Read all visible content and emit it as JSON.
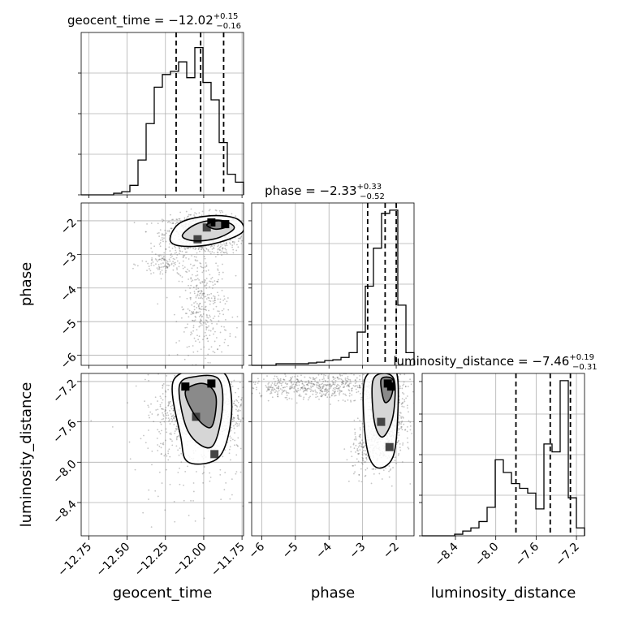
{
  "chart_data": {
    "type": "corner",
    "grid": true,
    "parameters": [
      {
        "name": "geocent_time",
        "xlabel": "geocent_time",
        "ylabel": "",
        "title": "geocent_time = −12.02",
        "title_sup": "+0.15",
        "title_sub": "−0.16",
        "range": [
          -12.8,
          -11.74
        ],
        "ticks": [
          -12.75,
          -12.5,
          -12.25,
          -12.0,
          -11.75
        ],
        "tick_labels": [
          "−12.75",
          "−12.50",
          "−12.25",
          "−12.00",
          "−11.75"
        ],
        "quantiles": [
          -12.18,
          -12.02,
          -11.87
        ],
        "hist_edges": [
          -12.8,
          -12.747,
          -12.694,
          -12.641,
          -12.588,
          -12.535,
          -12.482,
          -12.429,
          -12.376,
          -12.323,
          -12.27,
          -12.217,
          -12.164,
          -12.111,
          -12.058,
          -12.005,
          -11.952,
          -11.899,
          -11.846,
          -11.793,
          -11.74
        ],
        "hist_values": [
          0,
          0,
          0,
          0,
          0.01,
          0.02,
          0.06,
          0.22,
          0.45,
          0.68,
          0.76,
          0.78,
          0.84,
          0.74,
          0.93,
          0.71,
          0.6,
          0.33,
          0.13,
          0.08
        ]
      },
      {
        "name": "phase",
        "xlabel": "phase",
        "ylabel": "phase",
        "title": "phase = −2.33",
        "title_sup": "+0.33",
        "title_sub": "−0.52",
        "range": [
          -6.3,
          -1.47
        ],
        "ticks": [
          -6,
          -5,
          -4,
          -3,
          -2
        ],
        "tick_labels": [
          "−6",
          "−5",
          "−4",
          "−3",
          "−2"
        ],
        "quantiles": [
          -2.85,
          -2.33,
          -2.0
        ],
        "hist_edges": [
          -6.3,
          -6.058,
          -5.817,
          -5.575,
          -5.334,
          -5.092,
          -4.851,
          -4.609,
          -4.368,
          -4.126,
          -3.885,
          -3.643,
          -3.402,
          -3.16,
          -2.919,
          -2.677,
          -2.436,
          -2.194,
          -1.953,
          -1.711,
          -1.47
        ],
        "hist_values": [
          0,
          0,
          0,
          0.01,
          0.01,
          0.01,
          0.01,
          0.015,
          0.02,
          0.03,
          0.035,
          0.05,
          0.08,
          0.21,
          0.5,
          0.74,
          0.96,
          0.98,
          0.38,
          0.08
        ]
      },
      {
        "name": "luminosity_distance",
        "xlabel": "luminosity_distance",
        "ylabel": "luminosity_distance",
        "title": "luminosity_distance = −7.46",
        "title_sup": "+0.19",
        "title_sub": "−0.31",
        "range": [
          -8.73,
          -7.12
        ],
        "ticks": [
          -8.4,
          -8.0,
          -7.6,
          -7.2
        ],
        "tick_labels": [
          "−8.4",
          "−8.0",
          "−7.6",
          "−7.2"
        ],
        "quantiles": [
          -7.8,
          -7.46,
          -7.26
        ],
        "hist_edges": [
          -8.73,
          -8.6495,
          -8.569,
          -8.4885,
          -8.408,
          -8.3275,
          -8.247,
          -8.1665,
          -8.086,
          -8.0055,
          -7.925,
          -7.8445,
          -7.764,
          -7.6835,
          -7.603,
          -7.5225,
          -7.442,
          -7.3615,
          -7.281,
          -7.2005,
          -7.12
        ],
        "hist_values": [
          0,
          0,
          0,
          0,
          0.01,
          0.03,
          0.05,
          0.09,
          0.18,
          0.48,
          0.4,
          0.33,
          0.3,
          0.27,
          0.17,
          0.58,
          0.53,
          0.98,
          0.24,
          0.05
        ]
      }
    ],
    "pairs": [
      {
        "x": "geocent_time",
        "y": "phase",
        "mode_points": [
          [
            -11.95,
            -2.05
          ],
          [
            -11.86,
            -2.1
          ],
          [
            -12.04,
            -2.55
          ],
          [
            -11.98,
            -2.2
          ]
        ]
      },
      {
        "x": "geocent_time",
        "y": "luminosity_distance",
        "mode_points": [
          [
            -12.12,
            -7.25
          ],
          [
            -11.95,
            -7.22
          ],
          [
            -11.93,
            -7.92
          ],
          [
            -12.05,
            -7.55
          ]
        ]
      },
      {
        "x": "phase",
        "y": "luminosity_distance",
        "mode_points": [
          [
            -2.25,
            -7.22
          ],
          [
            -2.15,
            -7.25
          ],
          [
            -2.45,
            -7.6
          ],
          [
            -2.2,
            -7.85
          ]
        ]
      }
    ]
  }
}
